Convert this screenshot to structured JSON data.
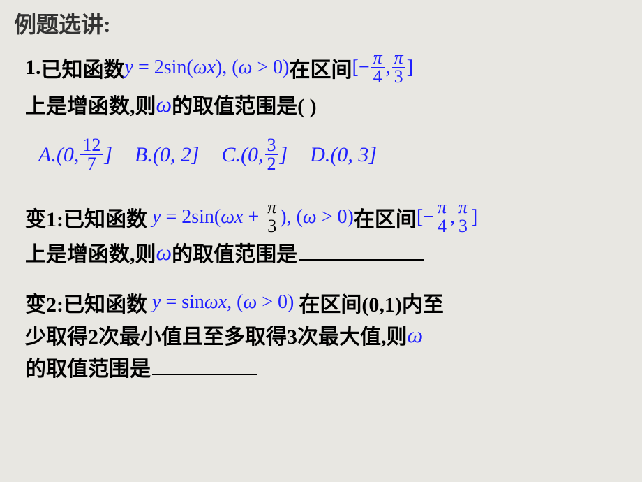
{
  "title": "例题选讲:",
  "problem1": {
    "label": "1.",
    "text_before_func": "已知函数 ",
    "func": "y = 2sin(ωx), (ω > 0)",
    "text_after_func": "在区间",
    "interval_open": "[−",
    "interval_frac1_num": "π",
    "interval_frac1_den": "4",
    "interval_comma": ",",
    "interval_frac2_num": "π",
    "interval_frac2_den": "3",
    "interval_close": "]",
    "line2_before": "上是增函数,则 ",
    "omega": "ω",
    "line2_after": " 的取值范围是(       )"
  },
  "options": {
    "A_prefix": "A.(0,",
    "A_num": "12",
    "A_den": "7",
    "A_suffix": "]",
    "B": "B.(0, 2]",
    "C_prefix": "C.(0,",
    "C_num": "3",
    "C_den": "2",
    "C_suffix": "]",
    "D": "D.(0, 3]"
  },
  "variant1": {
    "label": "变1:",
    "text_before_func": "已知函数",
    "func_prefix": "y = 2sin(ωx +",
    "func_frac_num": "π",
    "func_frac_den": "3",
    "func_suffix": "), (ω > 0)",
    "text_after_func": "在区间",
    "interval_open": "[−",
    "interval_frac1_num": "π",
    "interval_frac1_den": "4",
    "interval_comma": ",",
    "interval_frac2_num": "π",
    "interval_frac2_den": "3",
    "interval_close": "]",
    "line2_before": "上是增函数,则 ",
    "omega": "ω",
    "line2_after": " 的取值范围是"
  },
  "variant2": {
    "label": "变2:",
    "text_before_func": "已知函数",
    "func": "y = sinωx, (ω > 0)",
    "text_after_func": "在区间(0,1)内至",
    "line2": "少取得2次最小值且至多取得3次最大值,则",
    "omega": "ω",
    "line3": "的取值范围是"
  },
  "colors": {
    "background": "#e8e7e2",
    "text_black": "#000000",
    "text_dark": "#333333",
    "math_blue": "#2020ff"
  }
}
